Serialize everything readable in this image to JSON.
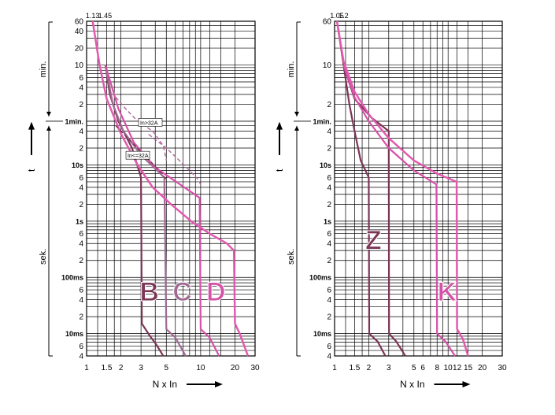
{
  "chart_data": [
    {
      "id": "left",
      "type": "line",
      "x_scale": "log",
      "y_scale": "log",
      "xlim": [
        1,
        30
      ],
      "ylim_seconds": [
        0.004,
        3600
      ],
      "x_tick_labels": [
        "1",
        "1.5",
        "2",
        "3",
        "5",
        "10",
        "20",
        "30"
      ],
      "x_tick_values": [
        1,
        1.5,
        2,
        3,
        5,
        10,
        20,
        30
      ],
      "top_labels": [
        {
          "text": "1.13",
          "x": 1.13
        },
        {
          "text": "1.45",
          "x": 1.45
        }
      ],
      "y_tick_labels": [
        {
          "text": "60",
          "sec": 3600
        },
        {
          "text": "40",
          "sec": 2400
        },
        {
          "text": "20",
          "sec": 1200
        },
        {
          "text": "10",
          "sec": 600
        },
        {
          "text": "6",
          "sec": 360
        },
        {
          "text": "4",
          "sec": 240
        },
        {
          "text": "2",
          "sec": 120
        },
        {
          "text": "1min.",
          "sec": 60
        },
        {
          "text": "4",
          "sec": 40
        },
        {
          "text": "2",
          "sec": 20
        },
        {
          "text": "10s",
          "sec": 10
        },
        {
          "text": "6",
          "sec": 6
        },
        {
          "text": "4",
          "sec": 4
        },
        {
          "text": "2",
          "sec": 2
        },
        {
          "text": "1s",
          "sec": 1
        },
        {
          "text": "6",
          "sec": 0.6
        },
        {
          "text": "4",
          "sec": 0.4
        },
        {
          "text": "2",
          "sec": 0.2
        },
        {
          "text": "100ms",
          "sec": 0.1
        },
        {
          "text": "6",
          "sec": 0.06
        },
        {
          "text": "4",
          "sec": 0.04
        },
        {
          "text": "2",
          "sec": 0.02
        },
        {
          "text": "10ms",
          "sec": 0.01
        },
        {
          "text": "6",
          "sec": 0.006
        },
        {
          "text": "4",
          "sec": 0.004
        }
      ],
      "min_label": "min.",
      "sek_label": "sek.",
      "t_label": "t",
      "xlabel": "N x In",
      "annotations": [
        {
          "text": "In>32A",
          "x": 2.9,
          "sec": 52
        },
        {
          "text": "In<=32A",
          "x": 2.25,
          "sec": 13.5
        }
      ],
      "curve_letters": [
        {
          "text": "B",
          "x": 3.55,
          "sec": 0.06,
          "color": "#7b3655"
        },
        {
          "text": "C",
          "x": 6.9,
          "sec": 0.06,
          "color": "#a06a93"
        },
        {
          "text": "D",
          "x": 13.6,
          "sec": 0.06,
          "color": "#d651a8"
        }
      ],
      "series": [
        {
          "color": "#7b3655",
          "width": 2.2,
          "dash": "",
          "points": [
            [
              1.46,
              600
            ],
            [
              1.6,
              180
            ],
            [
              1.9,
              60
            ],
            [
              2.5,
              20
            ],
            [
              3,
              6
            ],
            [
              3.05,
              0.015
            ],
            [
              3.6,
              0.009
            ],
            [
              4.1,
              0.0063
            ],
            [
              4.7,
              0.004
            ]
          ]
        },
        {
          "color": "#a06a93",
          "width": 2.2,
          "dash": "",
          "points": [
            [
              1.46,
              600
            ],
            [
              1.7,
              120
            ],
            [
              2.1,
              40
            ],
            [
              3,
              15
            ],
            [
              4.8,
              6
            ],
            [
              5,
              0.012
            ],
            [
              6,
              0.0085
            ],
            [
              7.4,
              0.004
            ]
          ]
        },
        {
          "color": "#d651a8",
          "width": 2.2,
          "dash": "",
          "points": [
            [
              1.46,
              600
            ],
            [
              1.9,
              100
            ],
            [
              2.6,
              25
            ],
            [
              4,
              9
            ],
            [
              9.8,
              2.6
            ],
            [
              10,
              0.012
            ],
            [
              12,
              0.0085
            ],
            [
              14.5,
              0.004
            ]
          ]
        },
        {
          "color": "#e15aae",
          "width": 2.5,
          "dash": "",
          "points": [
            [
              1.13,
              3600
            ],
            [
              1.3,
              600
            ],
            [
              1.5,
              150
            ],
            [
              2,
              36
            ],
            [
              2.8,
              10
            ],
            [
              3.8,
              4
            ],
            [
              5.5,
              2
            ],
            [
              8.5,
              0.95
            ],
            [
              12,
              0.6
            ],
            [
              17,
              0.4
            ],
            [
              19.6,
              0.3
            ],
            [
              20,
              0.015
            ],
            [
              22,
              0.01
            ],
            [
              26,
              0.004
            ]
          ]
        },
        {
          "color": "#b06a9c",
          "width": 1.4,
          "dash": "5,3",
          "points": [
            [
              1.8,
              160
            ],
            [
              2.2,
              100
            ],
            [
              2.8,
              60
            ],
            [
              3.8,
              40
            ],
            [
              4.7,
              22
            ],
            [
              5,
              12
            ]
          ]
        },
        {
          "color": "#b06a9c",
          "width": 1.4,
          "dash": "5,3",
          "points": [
            [
              3.5,
              35
            ],
            [
              5,
              20
            ],
            [
              6.5,
              12
            ],
            [
              8,
              8
            ],
            [
              9.5,
              5.5
            ],
            [
              10,
              4.5
            ]
          ]
        },
        {
          "color": "#7b3655",
          "width": 1.4,
          "dash": "5,3",
          "points": [
            [
              1.8,
              50
            ],
            [
              2.5,
              25
            ],
            [
              3.2,
              15
            ],
            [
              4.2,
              8.5
            ],
            [
              5,
              5.5
            ]
          ]
        }
      ]
    },
    {
      "id": "right",
      "type": "line",
      "x_scale": "log",
      "y_scale": "log",
      "xlim": [
        1,
        30
      ],
      "ylim_seconds": [
        0.004,
        3600
      ],
      "x_tick_labels": [
        "1",
        "1.5",
        "2",
        "3",
        "5",
        "6",
        "8",
        "10",
        "12",
        "15",
        "20",
        "30"
      ],
      "x_tick_values": [
        1,
        1.5,
        2,
        3,
        5,
        6,
        8,
        10,
        12,
        15,
        20,
        30
      ],
      "top_labels": [
        {
          "text": "1.05",
          "x": 1.05
        },
        {
          "text": "1.2",
          "x": 1.2
        }
      ],
      "y_tick_labels": [
        {
          "text": "60",
          "sec": 3600
        },
        {
          "text": "10",
          "sec": 600
        },
        {
          "text": "2",
          "sec": 120
        },
        {
          "text": "1min.",
          "sec": 60
        },
        {
          "text": "4",
          "sec": 40
        },
        {
          "text": "2",
          "sec": 20
        },
        {
          "text": "10s",
          "sec": 10
        },
        {
          "text": "6",
          "sec": 6
        },
        {
          "text": "4",
          "sec": 4
        },
        {
          "text": "2",
          "sec": 2
        },
        {
          "text": "1s",
          "sec": 1
        },
        {
          "text": "6",
          "sec": 0.6
        },
        {
          "text": "4",
          "sec": 0.4
        },
        {
          "text": "2",
          "sec": 0.2
        },
        {
          "text": "100ms",
          "sec": 0.1
        },
        {
          "text": "6",
          "sec": 0.06
        },
        {
          "text": "4",
          "sec": 0.04
        },
        {
          "text": "2",
          "sec": 0.02
        },
        {
          "text": "10ms",
          "sec": 0.01
        },
        {
          "text": "6",
          "sec": 0.006
        },
        {
          "text": "4",
          "sec": 0.004
        }
      ],
      "min_label": "min.",
      "sek_label": "sek.",
      "t_label": "t",
      "xlabel": "N x In",
      "annotations": [],
      "curve_letters": [
        {
          "text": "Z",
          "x": 2.2,
          "sec": 0.5,
          "color": "#7b3655"
        },
        {
          "text": "K",
          "x": 9.8,
          "sec": 0.06,
          "color": "#d651a8"
        }
      ],
      "series": [
        {
          "color": "#7b3655",
          "width": 2.2,
          "dash": "",
          "points": [
            [
              1.2,
              600
            ],
            [
              1.35,
              120
            ],
            [
              1.5,
              40
            ],
            [
              1.7,
              12
            ],
            [
              2,
              6
            ],
            [
              2.02,
              0.01
            ],
            [
              2.4,
              0.0072
            ],
            [
              2.8,
              0.004
            ]
          ]
        },
        {
          "color": "#7b3655",
          "width": 2.2,
          "dash": "",
          "points": [
            [
              1.05,
              3600
            ],
            [
              1.2,
              600
            ],
            [
              1.5,
              150
            ],
            [
              2.1,
              70
            ],
            [
              3,
              40
            ],
            [
              3.02,
              0.01
            ],
            [
              3.5,
              0.0072
            ],
            [
              4.2,
              0.004
            ]
          ]
        },
        {
          "color": "#d651a8",
          "width": 2.2,
          "dash": "",
          "points": [
            [
              1.2,
              600
            ],
            [
              1.5,
              160
            ],
            [
              2,
              60
            ],
            [
              3,
              20
            ],
            [
              5,
              8
            ],
            [
              7.9,
              4.5
            ],
            [
              8,
              0.01
            ],
            [
              9.5,
              0.0072
            ],
            [
              11.5,
              0.004
            ]
          ]
        },
        {
          "color": "#e15aae",
          "width": 2.5,
          "dash": "",
          "points": [
            [
              1.05,
              3600
            ],
            [
              1.2,
              700
            ],
            [
              1.5,
              200
            ],
            [
              2,
              80
            ],
            [
              3,
              30
            ],
            [
              5,
              12
            ],
            [
              8,
              7
            ],
            [
              11.9,
              5
            ],
            [
              12,
              0.012
            ],
            [
              13.5,
              0.008
            ],
            [
              15,
              0.004
            ]
          ]
        }
      ]
    }
  ]
}
